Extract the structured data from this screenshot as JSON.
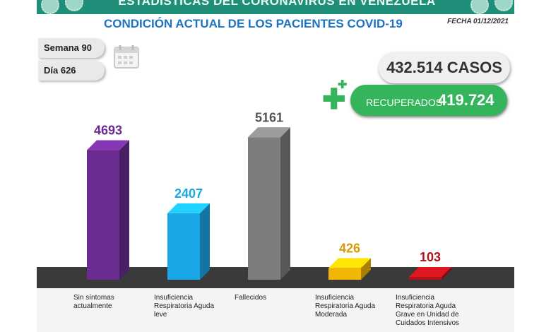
{
  "header": {
    "title": "ESTADISTICAS DEL CORONAVIRUS EN VENEZUELA",
    "subtitle": "CONDICIÓN ACTUAL DE LOS PACIENTES COVID-19",
    "fecha": "FECHA 01/12/2021"
  },
  "info": {
    "semana": "Semana 90",
    "dia": "Día 626"
  },
  "totals": {
    "casos": "432.514 CASOS",
    "recuperados_label": "RECUPERADOS",
    "recuperados_value": "419.724"
  },
  "colors": {
    "banner": "#1f8f7a",
    "subtitle": "#1a73c6",
    "recuperados": "#35b55b"
  },
  "icons": [
    "virus-icon",
    "calendar-icon",
    "plus-icon"
  ],
  "chart_data": {
    "type": "bar",
    "categories": [
      "Sin síntomas actualmente",
      "Insuficiencia Respiratoria Aguda leve",
      "Fallecidos",
      "Insuficiencia Respiratoria Aguda Moderada",
      "Insuficiencia Respiratoria Aguda Grave en Unidad de Cuidados Intensivos"
    ],
    "values": [
      4693,
      2407,
      5161,
      426,
      103
    ],
    "value_labels": [
      "4693",
      "2407",
      "5161",
      "426",
      "103"
    ],
    "colors": [
      "#6a2c91",
      "#1aa7e8",
      "#7d7d7d",
      "#f2b705",
      "#b3121a"
    ],
    "label_colors": [
      "#6a2c91",
      "#1aa7e8",
      "#555555",
      "#d99b05",
      "#b3121a"
    ],
    "ylim": [
      0,
      5500
    ],
    "grid": false,
    "legend": "none"
  }
}
